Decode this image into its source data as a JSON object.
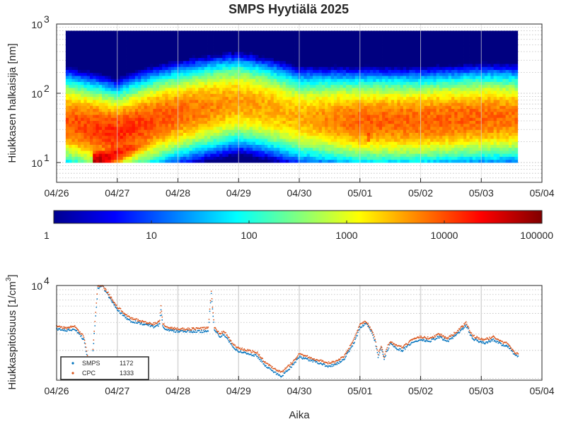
{
  "chart_data": [
    {
      "type": "heatmap",
      "title": "SMPS Hyytiälä 2025",
      "ylabel": "Hiukkasen halkaisija [nm]",
      "yscale": "log",
      "ylim": [
        10,
        1000
      ],
      "y_ticks": [
        {
          "base": "10",
          "exp": "1"
        },
        {
          "base": "10",
          "exp": "2"
        },
        {
          "base": "10",
          "exp": "3"
        }
      ],
      "x_ticks": [
        "04/26",
        "04/27",
        "04/28",
        "04/29",
        "04/30",
        "05/01",
        "05/02",
        "05/03",
        "05/04"
      ],
      "x_range_days": [
        0,
        8
      ],
      "data_coverage_days": [
        0.15,
        7.6
      ],
      "grid": true,
      "colorbar": {
        "scale": "log",
        "range": [
          1,
          100000
        ],
        "ticks": [
          "1",
          "10",
          "100",
          "1000",
          "10000",
          "100000"
        ],
        "colormap": "jet"
      },
      "features": {
        "nucleation_events": [
          {
            "start_day": 0.6,
            "end_day": 2.0,
            "min_diameter_nm": 10,
            "max_diameter_nm": 30,
            "peak_log_conc": 4.8
          },
          {
            "start_day": 5.1,
            "end_day": 5.4,
            "min_diameter_nm": 22,
            "max_diameter_nm": 60,
            "peak_log_conc": 4.2
          }
        ],
        "accumulation_mode": [
          {
            "day": 0.0,
            "mode_diameter_nm": 42,
            "log_conc": 3.9
          },
          {
            "day": 1.0,
            "mode_diameter_nm": 25,
            "log_conc": 4.2
          },
          {
            "day": 2.0,
            "mode_diameter_nm": 50,
            "log_conc": 3.9
          },
          {
            "day": 3.0,
            "mode_diameter_nm": 75,
            "log_conc": 3.6
          },
          {
            "day": 4.0,
            "mode_diameter_nm": 45,
            "log_conc": 3.5
          },
          {
            "day": 5.0,
            "mode_diameter_nm": 40,
            "log_conc": 3.9
          },
          {
            "day": 6.0,
            "mode_diameter_nm": 40,
            "log_conc": 3.9
          },
          {
            "day": 7.0,
            "mode_diameter_nm": 45,
            "log_conc": 3.9
          },
          {
            "day": 7.6,
            "mode_diameter_nm": 45,
            "log_conc": 3.8
          }
        ]
      }
    },
    {
      "type": "scatter",
      "ylabel": "Hiukkaspitoisuus [1/cm",
      "ylabel_sup": "3",
      "ylabel_end": "]",
      "xlabel": "Aika",
      "yscale": "log",
      "ylim": [
        1000,
        10000
      ],
      "y_ticks": [
        {
          "base": "10",
          "exp": "4"
        }
      ],
      "x_ticks": [
        "04/26",
        "04/27",
        "04/28",
        "04/29",
        "04/30",
        "05/01",
        "05/02",
        "05/03",
        "05/04"
      ],
      "x_range_days": [
        0,
        8
      ],
      "grid": true,
      "legend_position": "bottom-left",
      "x_days": [
        0.0,
        0.15,
        0.3,
        0.45,
        0.52,
        0.55,
        0.58,
        0.62,
        0.68,
        0.75,
        0.85,
        1.0,
        1.2,
        1.4,
        1.6,
        1.7,
        1.72,
        1.75,
        1.8,
        2.0,
        2.2,
        2.4,
        2.5,
        2.55,
        2.6,
        2.7,
        2.75,
        2.8,
        2.9,
        3.0,
        3.15,
        3.3,
        3.45,
        3.6,
        3.7,
        3.85,
        4.0,
        4.2,
        4.35,
        4.45,
        4.6,
        4.75,
        4.9,
        5.0,
        5.1,
        5.2,
        5.25,
        5.3,
        5.35,
        5.4,
        5.45,
        5.5,
        5.6,
        5.7,
        5.85,
        6.0,
        6.15,
        6.3,
        6.45,
        6.6,
        6.75,
        6.85,
        6.95,
        7.05,
        7.2,
        7.35,
        7.45,
        7.55,
        7.62
      ],
      "series": [
        {
          "name": "SMPS",
          "color": "#0072BD",
          "legend_value": "1172",
          "values": [
            3400,
            3300,
            3400,
            2600,
            1500,
            1200,
            1300,
            3000,
            9200,
            10000,
            7800,
            5500,
            4200,
            3900,
            3600,
            3800,
            5600,
            3700,
            3300,
            3200,
            3200,
            3200,
            3300,
            8000,
            3300,
            2800,
            3000,
            2800,
            2200,
            1950,
            1850,
            1750,
            1350,
            1150,
            1050,
            1300,
            1700,
            1550,
            1450,
            1350,
            1400,
            1650,
            2400,
            3500,
            3900,
            3100,
            2500,
            1700,
            2100,
            1600,
            2000,
            2350,
            2100,
            2000,
            2400,
            2600,
            2500,
            2800,
            2500,
            3000,
            3700,
            2700,
            2500,
            2400,
            2600,
            2300,
            2200,
            1800,
            1700
          ]
        },
        {
          "name": "CPC",
          "color": "#D95319",
          "legend_value": "1333",
          "values": [
            3600,
            3500,
            3600,
            2800,
            1600,
            1300,
            1350,
            3300,
            9900,
            10000,
            8300,
            5900,
            4500,
            4100,
            3850,
            4100,
            6100,
            3950,
            3550,
            3400,
            3400,
            3450,
            3500,
            8500,
            3500,
            3000,
            3200,
            3000,
            2350,
            2100,
            2000,
            1900,
            1450,
            1250,
            1150,
            1400,
            1850,
            1650,
            1550,
            1450,
            1500,
            1750,
            2600,
            3750,
            4100,
            3300,
            2700,
            1800,
            2250,
            1700,
            2150,
            2500,
            2250,
            2150,
            2550,
            2800,
            2700,
            3000,
            2700,
            3200,
            3950,
            2900,
            2700,
            2600,
            2800,
            2450,
            2350,
            1900,
            1800
          ]
        }
      ]
    }
  ]
}
